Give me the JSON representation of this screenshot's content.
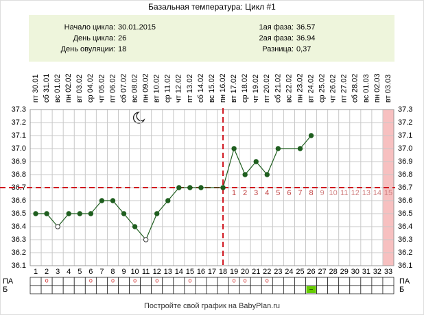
{
  "chart_data": {
    "type": "line",
    "title": "Базальная температура: Цикл #1",
    "info_left": [
      {
        "label": "Начало цикла:",
        "value": "30.01.2015"
      },
      {
        "label": "День цикла:",
        "value": "26"
      },
      {
        "label": "День овуляции:",
        "value": "18"
      }
    ],
    "info_right": [
      {
        "label": "1ая фаза:",
        "value": "36.57"
      },
      {
        "label": "2ая фаза:",
        "value": "36.94"
      },
      {
        "label": "Разница:",
        "value": "0,37"
      }
    ],
    "x": [
      1,
      2,
      3,
      4,
      5,
      6,
      7,
      8,
      9,
      10,
      11,
      12,
      13,
      14,
      15,
      16,
      17,
      18,
      19,
      20,
      21,
      22,
      23,
      24,
      25,
      26,
      27,
      28,
      29,
      30,
      31,
      32,
      33
    ],
    "dates": [
      "пт 30.01",
      "сб 31.01",
      "вс 01.02",
      "пн 02.02",
      "вт 03.02",
      "ср 04.02",
      "чт 05.02",
      "пт 06.02",
      "сб 07.02",
      "вс 08.02",
      "пн 09.02",
      "вт 10.02",
      "ср 11.02",
      "чт 12.02",
      "пт 13.02",
      "сб 14.02",
      "вс 15.02",
      "пн 16.02",
      "вт 17.02",
      "ср 18.02",
      "чт 19.02",
      "пт 20.02",
      "сб 21.02",
      "вс 22.02",
      "пн 23.02",
      "вт 24.02",
      "ср 25.02",
      "чт 26.02",
      "пт 27.02",
      "сб 28.02",
      "вс 01.03",
      "пн 02.03",
      "вт 03.03"
    ],
    "series": [
      {
        "name": "Температура",
        "color": "#1f5e1f",
        "values": [
          36.5,
          36.5,
          36.4,
          36.5,
          36.5,
          36.5,
          36.6,
          36.6,
          36.5,
          36.4,
          36.3,
          36.5,
          36.6,
          36.7,
          36.7,
          36.7,
          null,
          36.7,
          37.0,
          36.8,
          36.9,
          36.8,
          37.0,
          null,
          37.0,
          37.1,
          null,
          null,
          null,
          null,
          null,
          null,
          null
        ]
      }
    ],
    "hollow_x": [
      3,
      11
    ],
    "ylim": [
      36.1,
      37.3
    ],
    "yticks": [
      37.3,
      37.2,
      37.1,
      {
        "value": 37.0,
        "label": "37.0"
      },
      36.9,
      36.8,
      36.7,
      36.6,
      36.5,
      36.4,
      36.3,
      36.2,
      36.1
    ],
    "coverline": 36.7,
    "ovulation_x": 18,
    "phase2_x": [
      19,
      20,
      21,
      22,
      23,
      24,
      25,
      26,
      27,
      28,
      29,
      30,
      31,
      32,
      33
    ],
    "phase2_days": [
      1,
      2,
      3,
      4,
      5,
      6,
      7,
      8,
      9,
      10,
      11,
      12,
      13,
      14,
      15
    ],
    "highlight_x": 33,
    "rows": [
      {
        "label": "ПА",
        "x": [
          2,
          6,
          8,
          10,
          12,
          15,
          19,
          20,
          22
        ],
        "mark": "o"
      },
      {
        "label": "Б",
        "x": [
          26
        ],
        "mark": "–"
      }
    ],
    "footer": "Постройте свой график на BabyPlan.ru",
    "grid": true
  }
}
